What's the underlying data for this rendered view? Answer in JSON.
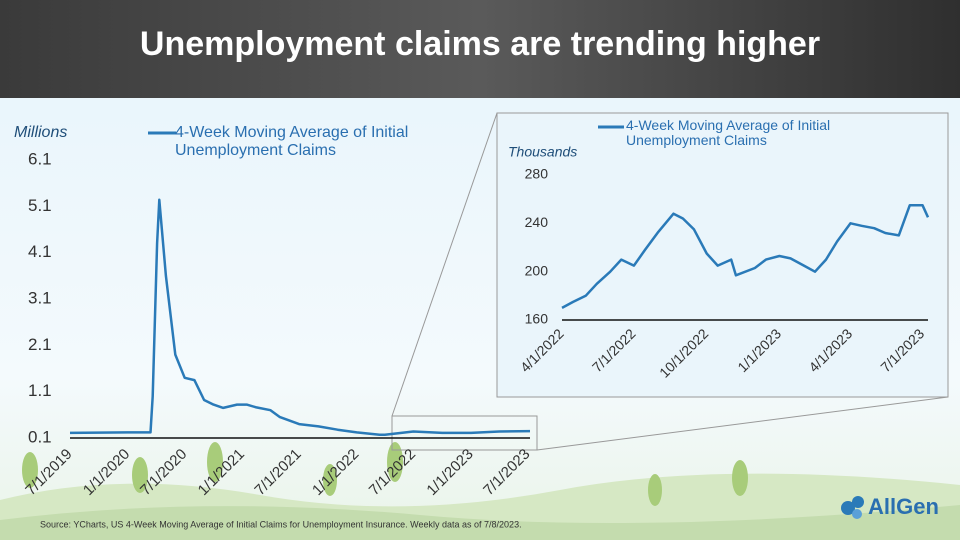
{
  "title": "Unemployment claims are trending higher",
  "source": "Source: YCharts, US 4-Week Moving Average of Initial Claims for Unemployment Insurance. Weekly data as of 7/8/2023.",
  "logo": "AllGen",
  "chart_data": [
    {
      "type": "line",
      "y_label": "Millions",
      "ylim": [
        0.1,
        6.1
      ],
      "yticks": [
        0.1,
        1.1,
        2.1,
        3.1,
        4.1,
        5.1,
        6.1
      ],
      "xticks": [
        "7/1/2019",
        "1/1/2020",
        "7/1/2020",
        "1/1/2021",
        "7/1/2021",
        "1/1/2022",
        "7/1/2022",
        "1/1/2023",
        "7/1/2023"
      ],
      "x": [
        "7/1/2019",
        "1/1/2020",
        "3/14/2020",
        "3/21/2020",
        "4/4/2020",
        "4/11/2020",
        "5/2/2020",
        "6/1/2020",
        "7/1/2020",
        "8/1/2020",
        "9/1/2020",
        "10/1/2020",
        "11/1/2020",
        "12/15/2020",
        "1/15/2021",
        "2/15/2021",
        "4/1/2021",
        "5/1/2021",
        "7/1/2021",
        "9/1/2021",
        "11/1/2021",
        "1/1/2022",
        "3/15/2022",
        "4/1/2022",
        "7/1/2022",
        "10/1/2022",
        "1/1/2023",
        "4/1/2023",
        "7/8/2023"
      ],
      "series": [
        {
          "name": "4-Week Moving Average of Initial Unemployment Claims",
          "color": "#2a7ab8",
          "values": [
            0.21,
            0.22,
            0.22,
            1.0,
            4.3,
            5.24,
            3.6,
            1.9,
            1.4,
            1.35,
            0.92,
            0.82,
            0.75,
            0.82,
            0.82,
            0.76,
            0.7,
            0.55,
            0.4,
            0.35,
            0.28,
            0.22,
            0.17,
            0.17,
            0.24,
            0.21,
            0.21,
            0.24,
            0.25
          ]
        }
      ]
    },
    {
      "type": "line",
      "y_label": "Thousands",
      "ylim": [
        160,
        280
      ],
      "yticks": [
        160,
        200,
        240,
        280
      ],
      "xticks": [
        "4/1/2022",
        "7/1/2022",
        "10/1/2022",
        "1/1/2023",
        "4/1/2023",
        "7/1/2023"
      ],
      "x": [
        "4/1/2022",
        "4/15/2022",
        "5/1/2022",
        "5/15/2022",
        "6/1/2022",
        "6/15/2022",
        "7/1/2022",
        "7/15/2022",
        "8/1/2022",
        "8/20/2022",
        "9/1/2022",
        "9/15/2022",
        "10/1/2022",
        "10/15/2022",
        "11/1/2022",
        "11/7/2022",
        "12/1/2022",
        "12/15/2022",
        "1/1/2023",
        "1/15/2023",
        "2/1/2023",
        "2/15/2023",
        "3/1/2023",
        "3/15/2023",
        "4/1/2023",
        "4/15/2023",
        "5/1/2023",
        "5/15/2023",
        "6/1/2023",
        "6/15/2023",
        "7/1/2023",
        "7/8/2023"
      ],
      "series": [
        {
          "name": "4-Week Moving Average of Initial Unemployment Claims",
          "color": "#2a7ab8",
          "values": [
            170,
            175,
            180,
            190,
            200,
            210,
            205,
            218,
            233,
            248,
            244,
            235,
            215,
            205,
            210,
            197,
            203,
            210,
            213,
            211,
            205,
            200,
            210,
            225,
            240,
            238,
            236,
            232,
            230,
            255,
            255,
            245
          ]
        }
      ]
    }
  ]
}
